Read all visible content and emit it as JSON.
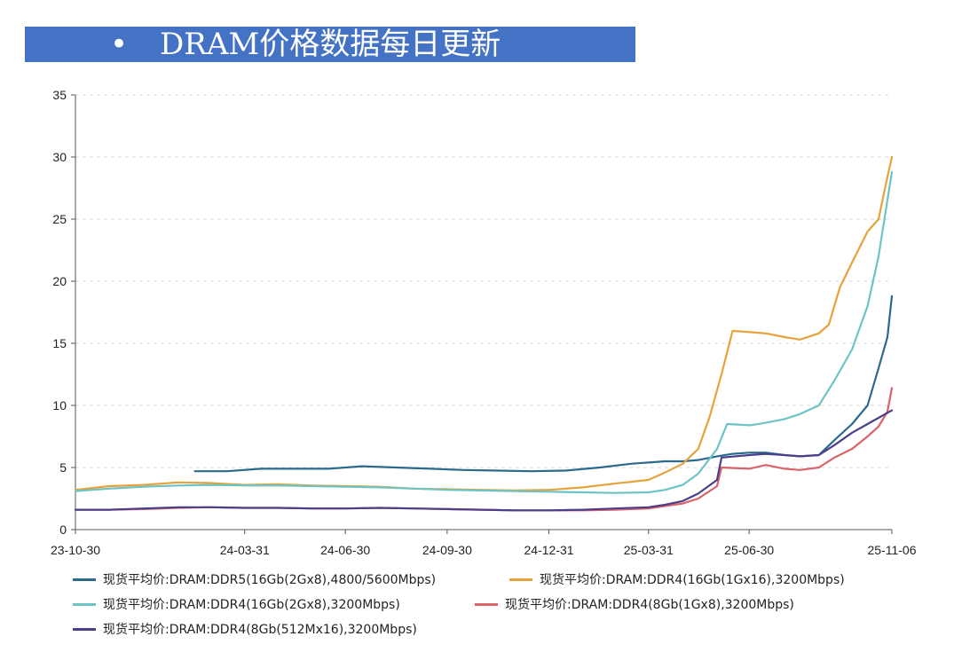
{
  "title": {
    "bullet": "•",
    "text": "DRAM价格数据每日更新"
  },
  "chart_data": {
    "type": "line",
    "title": "DRAM价格数据每日更新",
    "xlabel": "",
    "ylabel": "",
    "ylim": [
      0,
      35
    ],
    "yticks": [
      0,
      5,
      10,
      15,
      20,
      25,
      30,
      35
    ],
    "xlim": [
      "2023-10-30",
      "2025-11-06"
    ],
    "xticks": [
      {
        "date": "2023-10-30",
        "label": "23-10-30"
      },
      {
        "date": "2024-03-31",
        "label": "24-03-31"
      },
      {
        "date": "2024-06-30",
        "label": "24-06-30"
      },
      {
        "date": "2024-09-30",
        "label": "24-09-30"
      },
      {
        "date": "2024-12-31",
        "label": "24-12-31"
      },
      {
        "date": "2025-03-31",
        "label": "25-03-31"
      },
      {
        "date": "2025-06-30",
        "label": "25-06-30"
      },
      {
        "date": "2025-11-06",
        "label": "25-11-06"
      }
    ],
    "grid": "horizontal-dashed",
    "legend_position": "bottom",
    "series": [
      {
        "name": "现货平均价:DRAM:DDR5(16Gb(2Gx8),4800/5600Mbps)",
        "color": "#2a6a8c",
        "points": [
          [
            "2024-02-15",
            4.7
          ],
          [
            "2024-03-15",
            4.7
          ],
          [
            "2024-04-15",
            4.9
          ],
          [
            "2024-05-15",
            4.9
          ],
          [
            "2024-06-15",
            4.9
          ],
          [
            "2024-07-15",
            5.1
          ],
          [
            "2024-08-15",
            5.0
          ],
          [
            "2024-09-15",
            4.9
          ],
          [
            "2024-10-15",
            4.8
          ],
          [
            "2024-11-15",
            4.75
          ],
          [
            "2024-12-15",
            4.7
          ],
          [
            "2025-01-15",
            4.75
          ],
          [
            "2025-02-15",
            5.0
          ],
          [
            "2025-03-15",
            5.3
          ],
          [
            "2025-04-15",
            5.5
          ],
          [
            "2025-05-01",
            5.5
          ],
          [
            "2025-05-15",
            5.6
          ],
          [
            "2025-06-01",
            5.9
          ],
          [
            "2025-06-15",
            6.1
          ],
          [
            "2025-07-01",
            6.2
          ],
          [
            "2025-07-15",
            6.2
          ],
          [
            "2025-08-01",
            6.0
          ],
          [
            "2025-08-15",
            5.9
          ],
          [
            "2025-09-01",
            6.0
          ],
          [
            "2025-09-15",
            7.2
          ],
          [
            "2025-10-01",
            8.5
          ],
          [
            "2025-10-15",
            10.0
          ],
          [
            "2025-10-25",
            13.0
          ],
          [
            "2025-11-02",
            15.5
          ],
          [
            "2025-11-06",
            18.8
          ]
        ]
      },
      {
        "name": "现货平均价:DRAM:DDR4(16Gb(1Gx16),3200Mbps)",
        "color": "#e6a23c",
        "points": [
          [
            "2023-10-30",
            3.2
          ],
          [
            "2023-11-30",
            3.5
          ],
          [
            "2023-12-31",
            3.6
          ],
          [
            "2024-01-31",
            3.8
          ],
          [
            "2024-02-29",
            3.75
          ],
          [
            "2024-03-31",
            3.6
          ],
          [
            "2024-04-30",
            3.65
          ],
          [
            "2024-05-31",
            3.55
          ],
          [
            "2024-06-30",
            3.5
          ],
          [
            "2024-07-31",
            3.45
          ],
          [
            "2024-08-31",
            3.3
          ],
          [
            "2024-09-30",
            3.25
          ],
          [
            "2024-10-31",
            3.2
          ],
          [
            "2024-11-30",
            3.15
          ],
          [
            "2024-12-31",
            3.2
          ],
          [
            "2025-01-31",
            3.4
          ],
          [
            "2025-02-28",
            3.7
          ],
          [
            "2025-03-31",
            4.0
          ],
          [
            "2025-04-15",
            4.6
          ],
          [
            "2025-05-01",
            5.3
          ],
          [
            "2025-05-15",
            6.5
          ],
          [
            "2025-05-25",
            9.0
          ],
          [
            "2025-06-05",
            12.5
          ],
          [
            "2025-06-15",
            16.0
          ],
          [
            "2025-07-01",
            15.9
          ],
          [
            "2025-07-15",
            15.8
          ],
          [
            "2025-08-01",
            15.5
          ],
          [
            "2025-08-15",
            15.3
          ],
          [
            "2025-09-01",
            15.8
          ],
          [
            "2025-09-10",
            16.5
          ],
          [
            "2025-09-20",
            19.5
          ],
          [
            "2025-10-01",
            21.5
          ],
          [
            "2025-10-15",
            24.0
          ],
          [
            "2025-10-25",
            25.0
          ],
          [
            "2025-11-01",
            28.0
          ],
          [
            "2025-11-06",
            30.0
          ]
        ]
      },
      {
        "name": "现货平均价:DRAM:DDR4(16Gb(2Gx8),3200Mbps)",
        "color": "#6cc4c4",
        "points": [
          [
            "2023-10-30",
            3.1
          ],
          [
            "2023-11-30",
            3.3
          ],
          [
            "2023-12-31",
            3.45
          ],
          [
            "2024-01-31",
            3.55
          ],
          [
            "2024-02-29",
            3.6
          ],
          [
            "2024-03-31",
            3.55
          ],
          [
            "2024-04-30",
            3.55
          ],
          [
            "2024-05-31",
            3.5
          ],
          [
            "2024-06-30",
            3.45
          ],
          [
            "2024-07-31",
            3.4
          ],
          [
            "2024-08-31",
            3.3
          ],
          [
            "2024-09-30",
            3.2
          ],
          [
            "2024-10-31",
            3.15
          ],
          [
            "2024-11-30",
            3.1
          ],
          [
            "2024-12-31",
            3.05
          ],
          [
            "2025-01-31",
            3.0
          ],
          [
            "2025-02-28",
            2.95
          ],
          [
            "2025-03-31",
            3.0
          ],
          [
            "2025-04-15",
            3.2
          ],
          [
            "2025-05-01",
            3.6
          ],
          [
            "2025-05-15",
            4.5
          ],
          [
            "2025-06-01",
            6.5
          ],
          [
            "2025-06-10",
            8.5
          ],
          [
            "2025-07-01",
            8.4
          ],
          [
            "2025-07-15",
            8.6
          ],
          [
            "2025-08-01",
            8.9
          ],
          [
            "2025-08-15",
            9.3
          ],
          [
            "2025-09-01",
            10.0
          ],
          [
            "2025-09-15",
            12.0
          ],
          [
            "2025-10-01",
            14.5
          ],
          [
            "2025-10-15",
            18.0
          ],
          [
            "2025-10-25",
            22.0
          ],
          [
            "2025-11-01",
            26.0
          ],
          [
            "2025-11-06",
            28.8
          ]
        ]
      },
      {
        "name": "现货平均价:DRAM:DDR4(8Gb(1Gx8),3200Mbps)",
        "color": "#d9626b",
        "points": [
          [
            "2023-10-30",
            1.6
          ],
          [
            "2023-11-30",
            1.6
          ],
          [
            "2023-12-31",
            1.65
          ],
          [
            "2024-01-31",
            1.75
          ],
          [
            "2024-02-29",
            1.8
          ],
          [
            "2024-03-31",
            1.75
          ],
          [
            "2024-04-30",
            1.75
          ],
          [
            "2024-05-31",
            1.7
          ],
          [
            "2024-06-30",
            1.7
          ],
          [
            "2024-07-31",
            1.75
          ],
          [
            "2024-08-31",
            1.7
          ],
          [
            "2024-09-30",
            1.65
          ],
          [
            "2024-10-31",
            1.6
          ],
          [
            "2024-11-30",
            1.55
          ],
          [
            "2024-12-31",
            1.55
          ],
          [
            "2025-01-31",
            1.55
          ],
          [
            "2025-02-28",
            1.6
          ],
          [
            "2025-03-31",
            1.7
          ],
          [
            "2025-04-15",
            1.9
          ],
          [
            "2025-05-01",
            2.1
          ],
          [
            "2025-05-15",
            2.5
          ],
          [
            "2025-06-01",
            3.5
          ],
          [
            "2025-06-05",
            5.0
          ],
          [
            "2025-06-30",
            4.9
          ],
          [
            "2025-07-15",
            5.2
          ],
          [
            "2025-08-01",
            4.9
          ],
          [
            "2025-08-15",
            4.8
          ],
          [
            "2025-09-01",
            5.0
          ],
          [
            "2025-09-15",
            5.8
          ],
          [
            "2025-10-01",
            6.5
          ],
          [
            "2025-10-15",
            7.5
          ],
          [
            "2025-10-25",
            8.3
          ],
          [
            "2025-11-02",
            9.5
          ],
          [
            "2025-11-06",
            11.4
          ]
        ]
      },
      {
        "name": "现货平均价:DRAM:DDR4(8Gb(512Mx16),3200Mbps)",
        "color": "#4b3f8a",
        "points": [
          [
            "2023-10-30",
            1.6
          ],
          [
            "2023-11-30",
            1.6
          ],
          [
            "2023-12-31",
            1.7
          ],
          [
            "2024-01-31",
            1.8
          ],
          [
            "2024-02-29",
            1.8
          ],
          [
            "2024-03-31",
            1.75
          ],
          [
            "2024-04-30",
            1.75
          ],
          [
            "2024-05-31",
            1.7
          ],
          [
            "2024-06-30",
            1.7
          ],
          [
            "2024-07-31",
            1.75
          ],
          [
            "2024-08-31",
            1.7
          ],
          [
            "2024-09-30",
            1.65
          ],
          [
            "2024-10-31",
            1.6
          ],
          [
            "2024-11-30",
            1.55
          ],
          [
            "2024-12-31",
            1.55
          ],
          [
            "2025-01-31",
            1.6
          ],
          [
            "2025-02-28",
            1.7
          ],
          [
            "2025-03-31",
            1.8
          ],
          [
            "2025-04-15",
            2.0
          ],
          [
            "2025-05-01",
            2.3
          ],
          [
            "2025-05-15",
            2.9
          ],
          [
            "2025-06-01",
            4.0
          ],
          [
            "2025-06-05",
            5.8
          ],
          [
            "2025-06-30",
            6.0
          ],
          [
            "2025-07-15",
            6.1
          ],
          [
            "2025-08-01",
            6.0
          ],
          [
            "2025-08-15",
            5.9
          ],
          [
            "2025-09-01",
            6.0
          ],
          [
            "2025-09-15",
            6.8
          ],
          [
            "2025-10-01",
            7.8
          ],
          [
            "2025-10-15",
            8.5
          ],
          [
            "2025-10-25",
            9.0
          ],
          [
            "2025-11-06",
            9.6
          ]
        ]
      }
    ]
  }
}
